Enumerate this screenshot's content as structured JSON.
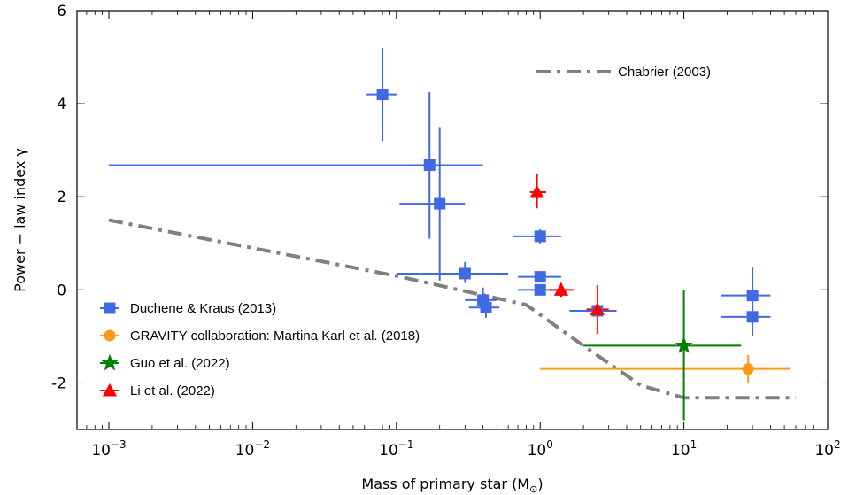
{
  "chart_data": {
    "type": "scatter",
    "x_scale": "log",
    "xlim": [
      0.0006,
      100
    ],
    "ylim": [
      -3,
      6
    ],
    "xlabel": "Mass of primary star (M",
    "xlabel_sub": "⊙",
    "xlabel_close": ")",
    "ylabel": "Power − law  index  γ",
    "x_ticks": [
      {
        "value": 0.001,
        "base": "10",
        "exp": "−3"
      },
      {
        "value": 0.01,
        "base": "10",
        "exp": "−2"
      },
      {
        "value": 0.1,
        "base": "10",
        "exp": "−1"
      },
      {
        "value": 1,
        "base": "10",
        "exp": "0"
      },
      {
        "value": 10,
        "base": "10",
        "exp": "1"
      },
      {
        "value": 100,
        "base": "10",
        "exp": "2"
      }
    ],
    "y_ticks": [
      {
        "value": -2,
        "label": "-2"
      },
      {
        "value": 0,
        "label": "0"
      },
      {
        "value": 2,
        "label": "2"
      },
      {
        "value": 4,
        "label": "4"
      },
      {
        "value": 6,
        "label": "6"
      }
    ],
    "series": [
      {
        "name": "Duchene & Kraus (2013)",
        "color": "#4169E1",
        "marker": "square",
        "points": [
          {
            "x": 0.08,
            "y": 4.2,
            "xlo": 0.062,
            "xhi": 0.1,
            "ylo": 3.2,
            "yhi": 5.2
          },
          {
            "x": 0.17,
            "y": 2.68,
            "xlo": 0.001,
            "xhi": 0.4,
            "ylo": 1.1,
            "yhi": 4.25
          },
          {
            "x": 0.2,
            "y": 1.85,
            "xlo": 0.105,
            "xhi": 0.3,
            "ylo": 0.2,
            "yhi": 3.5
          },
          {
            "x": 0.3,
            "y": 0.35,
            "xlo": 0.1,
            "xhi": 0.6,
            "ylo": 0.15,
            "yhi": 0.6
          },
          {
            "x": 0.4,
            "y": -0.22,
            "xlo": 0.3,
            "xhi": 0.5,
            "ylo": -0.5,
            "yhi": 0.05
          },
          {
            "x": 0.42,
            "y": -0.38,
            "xlo": 0.32,
            "xhi": 0.52,
            "ylo": -0.6,
            "yhi": -0.15
          },
          {
            "x": 1.0,
            "y": 1.15,
            "xlo": 0.65,
            "xhi": 1.4,
            "ylo": 1.0,
            "yhi": 1.3
          },
          {
            "x": 1.0,
            "y": 0.28,
            "xlo": 0.7,
            "xhi": 1.4,
            "ylo": 0.2,
            "yhi": 0.36
          },
          {
            "x": 1.0,
            "y": 0.0,
            "xlo": 0.7,
            "xhi": 1.4,
            "ylo": 0.0,
            "yhi": 0.0
          },
          {
            "x": 2.5,
            "y": -0.45,
            "xlo": 1.6,
            "xhi": 3.4,
            "ylo": -0.55,
            "yhi": -0.35
          },
          {
            "x": 30,
            "y": -0.12,
            "xlo": 18,
            "xhi": 40,
            "ylo": -0.6,
            "yhi": 0.48
          },
          {
            "x": 30,
            "y": -0.58,
            "xlo": 18,
            "xhi": 40,
            "ylo": -1.0,
            "yhi": -0.3
          }
        ]
      },
      {
        "name": "GRAVITY collaboration: Martina Karl et al. (2018)",
        "color": "#FF9915",
        "marker": "circle",
        "points": [
          {
            "x": 28,
            "y": -1.7,
            "xlo": 1.0,
            "xhi": 55,
            "ylo": -2.0,
            "yhi": -1.4
          }
        ]
      },
      {
        "name": "Guo et al. (2022)",
        "color": "#008000",
        "marker": "star",
        "points": [
          {
            "x": 10,
            "y": -1.2,
            "xlo": 2.0,
            "xhi": 25,
            "ylo": -2.8,
            "yhi": 0.0
          }
        ]
      },
      {
        "name": "Li et al. (2022)",
        "color": "#FF0000",
        "marker": "triangle",
        "points": [
          {
            "x": 0.95,
            "y": 2.1,
            "xlo": 0.85,
            "xhi": 1.1,
            "ylo": 1.75,
            "yhi": 2.5
          },
          {
            "x": 1.4,
            "y": 0.0,
            "xlo": 1.15,
            "xhi": 1.7,
            "ylo": -0.15,
            "yhi": 0.15
          },
          {
            "x": 2.5,
            "y": -0.42,
            "xlo": 2.1,
            "xhi": 3.0,
            "ylo": -0.95,
            "yhi": 0.1
          }
        ]
      }
    ],
    "reference_line": {
      "name": "Chabrier (2003)",
      "color": "#808080",
      "style": "dash-dot",
      "x": [
        0.001,
        0.1,
        0.8,
        2.0,
        5.0,
        10,
        60
      ],
      "y": [
        1.5,
        0.3,
        -0.32,
        -1.2,
        -2.05,
        -2.32,
        -2.32
      ]
    },
    "legend": {
      "position": "lower-left",
      "entries": [
        "Duchene & Kraus (2013)",
        "GRAVITY collaboration: Martina Karl et al. (2018)",
        "Guo et al. (2022)",
        "Li et al. (2022)"
      ],
      "reference_entry": "Chabrier (2003)",
      "reference_position": "upper-right"
    }
  }
}
